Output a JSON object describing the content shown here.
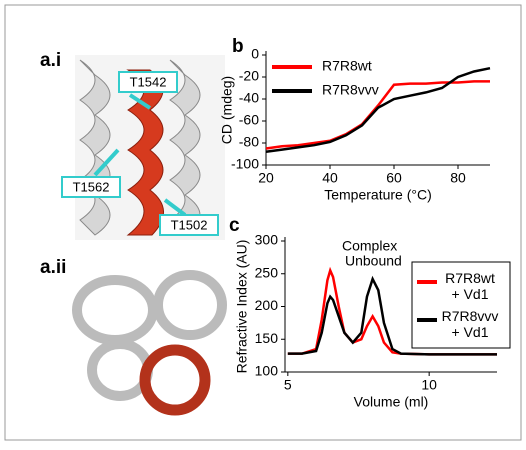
{
  "structures": [
    {
      "panel_label": "a.i",
      "callouts": [
        "T1542",
        "T1562",
        "T1502"
      ]
    },
    {
      "panel_label": "a.ii"
    }
  ],
  "chart_data": [
    {
      "type": "line",
      "panel_label": "b",
      "x_label": "Temperature (°C)",
      "y_label": "CD (mdeg)",
      "x": [
        20,
        25,
        30,
        35,
        40,
        45,
        50,
        55,
        60,
        65,
        70,
        75,
        80,
        85,
        90
      ],
      "series": [
        {
          "name": "R7R8wt",
          "color": "#ff0000",
          "values": [
            -85,
            -83,
            -82,
            -80,
            -78,
            -72,
            -63,
            -46,
            -27,
            -26,
            -26,
            -25,
            -25,
            -24,
            -24
          ]
        },
        {
          "name": "R7R8vvv",
          "color": "#000000",
          "values": [
            -88,
            -86,
            -84,
            -82,
            -79,
            -73,
            -64,
            -48,
            -40,
            -37,
            -34,
            -30,
            -20,
            -15,
            -12
          ]
        }
      ],
      "xlim": [
        20,
        90
      ],
      "xticks": [
        20,
        40,
        60,
        80
      ],
      "ylim": [
        -100,
        0
      ],
      "yticks": [
        0,
        -20,
        -40,
        -60,
        -80,
        -100
      ]
    },
    {
      "type": "line",
      "panel_label": "c",
      "x_label": "Volume (ml)",
      "y_label": "Refractive Index (AU)",
      "annotations": [
        "Complex",
        "Unbound"
      ],
      "x": [
        5,
        5.5,
        6,
        6.2,
        6.4,
        6.5,
        6.6,
        6.8,
        7,
        7.3,
        7.6,
        7.8,
        8,
        8.2,
        8.4,
        8.7,
        9,
        10,
        11,
        12.4
      ],
      "series": [
        {
          "name": "R7R8wt + Vd1",
          "color": "#ff0000",
          "values": [
            128,
            128,
            135,
            180,
            240,
            255,
            245,
            200,
            160,
            145,
            150,
            170,
            185,
            170,
            145,
            130,
            128,
            127,
            127,
            127
          ]
        },
        {
          "name": "R7R8vvv + Vd1",
          "color": "#000000",
          "values": [
            128,
            128,
            132,
            160,
            205,
            215,
            210,
            185,
            160,
            145,
            160,
            215,
            242,
            225,
            175,
            135,
            128,
            127,
            127,
            127
          ]
        }
      ],
      "xlim": [
        4.9,
        12.4
      ],
      "xticks": [
        5,
        10
      ],
      "ylim": [
        100,
        300
      ],
      "yticks": [
        100,
        150,
        200,
        250,
        300
      ]
    }
  ]
}
